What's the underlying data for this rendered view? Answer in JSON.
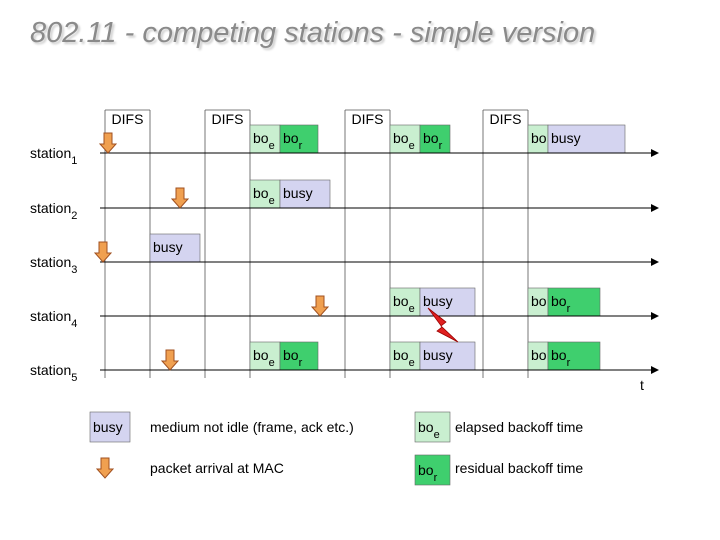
{
  "header": {
    "title": "802.11 - competing stations - simple version"
  },
  "difs_labels": [
    "DIFS",
    "DIFS",
    "DIFS",
    "DIFS"
  ],
  "stations": [
    {
      "name": "station",
      "sub": "1",
      "boxes": [
        {
          "text": "bo",
          "sub": "e"
        },
        {
          "text": "bo",
          "sub": "r"
        },
        {
          "text": "bo",
          "sub": "e"
        },
        {
          "text": "bo",
          "sub": "r"
        },
        {
          "text": "bo"
        },
        {
          "text": "busy"
        }
      ]
    },
    {
      "name": "station",
      "sub": "2",
      "boxes": [
        {
          "text": "bo",
          "sub": "e"
        },
        {
          "text": "busy"
        }
      ]
    },
    {
      "name": "station",
      "sub": "3",
      "boxes": [
        {
          "text": "busy"
        }
      ]
    },
    {
      "name": "station",
      "sub": "4",
      "boxes": [
        {
          "text": "bo",
          "sub": "e"
        },
        {
          "text": "busy"
        },
        {
          "text": "bo"
        },
        {
          "text": "bo",
          "sub": "r"
        }
      ]
    },
    {
      "name": "station",
      "sub": "5",
      "boxes": [
        {
          "text": "bo",
          "sub": "e"
        },
        {
          "text": "bo",
          "sub": "r"
        },
        {
          "text": "bo",
          "sub": "e"
        },
        {
          "text": "busy"
        },
        {
          "text": "bo"
        },
        {
          "text": "bo",
          "sub": "r"
        }
      ]
    }
  ],
  "time_label": "t",
  "legend": [
    {
      "symbol": {
        "text": "busy"
      },
      "text": "medium not idle (frame, ack etc.)"
    },
    {
      "text": "packet arrival at MAC"
    },
    {
      "symbol": {
        "text": "bo",
        "sub": "e"
      },
      "text": "elapsed backoff time"
    },
    {
      "symbol": {
        "text": "bo",
        "sub": "r"
      },
      "text": "residual backoff time"
    }
  ]
}
